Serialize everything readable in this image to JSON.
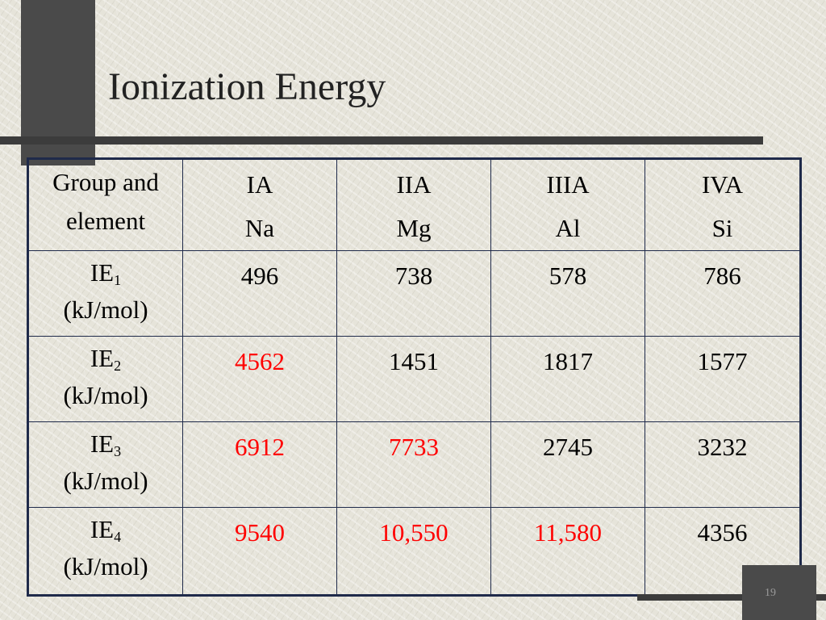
{
  "title": "Ionization Energy",
  "slide_number": "19",
  "colors": {
    "highlight": "#ff0000",
    "normal": "#000000",
    "border": "#1f2a4a",
    "bars": "#4a4a4a"
  },
  "table": {
    "header": {
      "label_line1": "Group and",
      "label_line2": "element",
      "columns": [
        {
          "group": "IA",
          "element": "Na"
        },
        {
          "group": "IIA",
          "element": "Mg"
        },
        {
          "group": "IIIA",
          "element": "Al"
        },
        {
          "group": "IVA",
          "element": "Si"
        }
      ]
    },
    "rows": [
      {
        "ie": "IE",
        "sub": "1",
        "unit": "(kJ/mol)",
        "values": [
          "496",
          "738",
          "578",
          "786"
        ],
        "highlighted": [
          false,
          false,
          false,
          false
        ]
      },
      {
        "ie": "IE",
        "sub": "2",
        "unit": "(kJ/mol)",
        "values": [
          "4562",
          "1451",
          "1817",
          "1577"
        ],
        "highlighted": [
          true,
          false,
          false,
          false
        ]
      },
      {
        "ie": "IE",
        "sub": "3",
        "unit": "(kJ/mol)",
        "values": [
          "6912",
          "7733",
          "2745",
          "3232"
        ],
        "highlighted": [
          true,
          true,
          false,
          false
        ]
      },
      {
        "ie": "IE",
        "sub": "4",
        "unit": "(kJ/mol)",
        "values": [
          "9540",
          "10,550",
          "11,580",
          "4356"
        ],
        "highlighted": [
          true,
          true,
          true,
          false
        ]
      }
    ]
  }
}
